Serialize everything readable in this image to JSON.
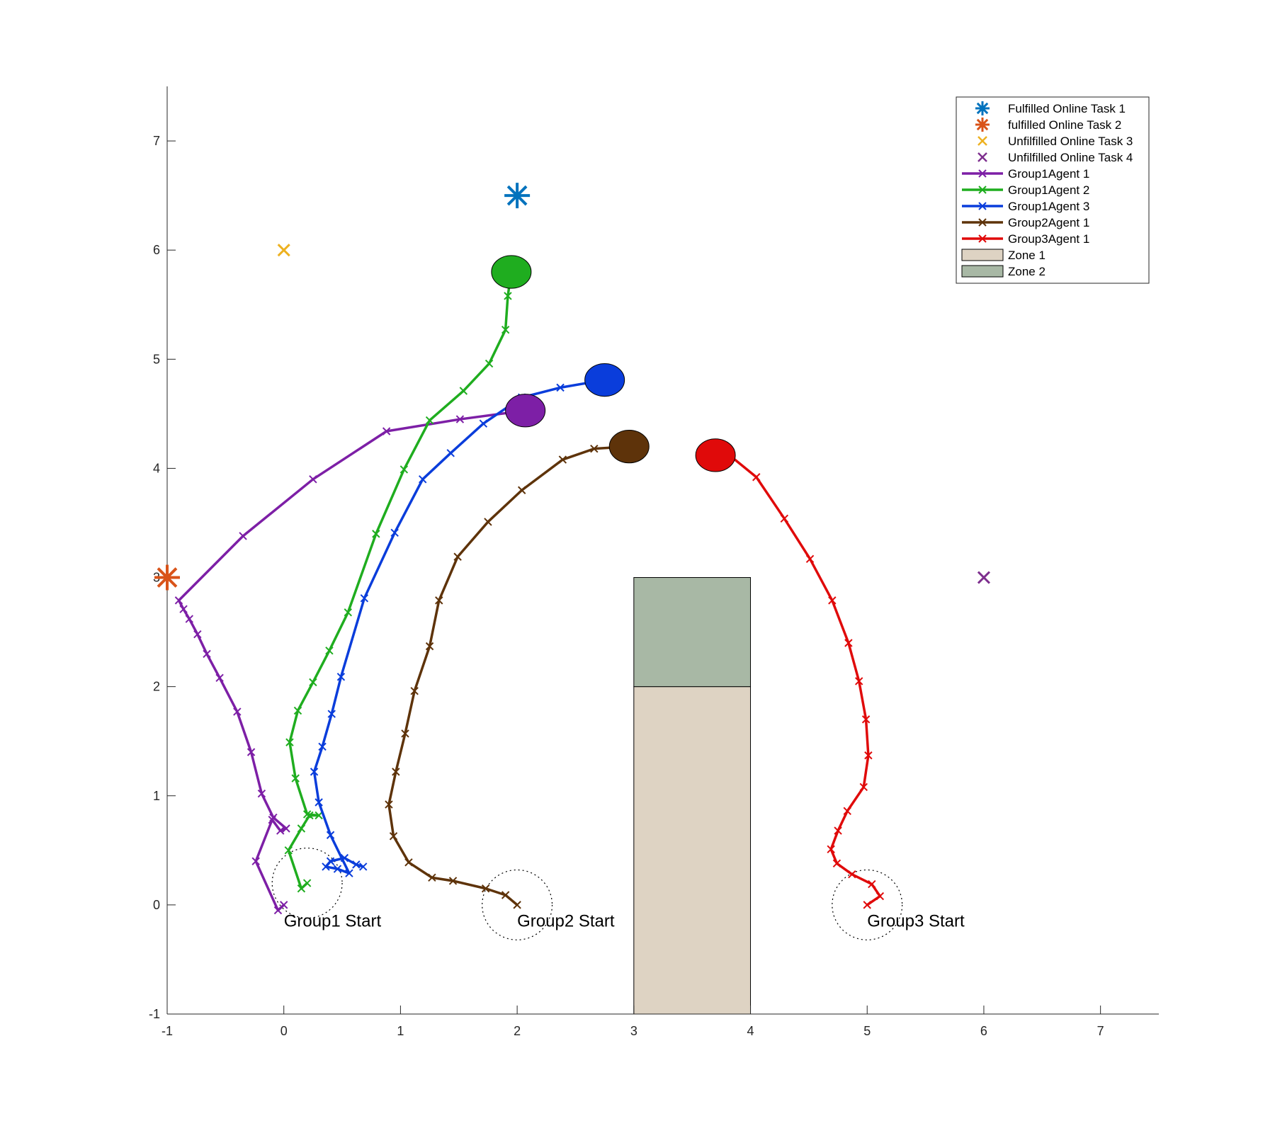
{
  "chart_data": {
    "type": "line",
    "title": "",
    "xlabel": "",
    "ylabel": "",
    "xlim": [
      -1,
      7.5
    ],
    "ylim": [
      -1,
      7.5
    ],
    "xticks": [
      -1,
      0,
      1,
      2,
      3,
      4,
      5,
      6,
      7
    ],
    "yticks": [
      -1,
      0,
      1,
      2,
      3,
      4,
      5,
      6,
      7
    ],
    "legend_placement": "top-right",
    "zones": [
      {
        "name": "Zone 1",
        "color": "#DED3C3",
        "x": [
          3,
          4
        ],
        "y": [
          -1,
          2
        ]
      },
      {
        "name": "Zone 2",
        "color": "#A8B8A5",
        "x": [
          3,
          4
        ],
        "y": [
          2,
          3
        ]
      }
    ],
    "tasks": [
      {
        "name": "Fulfilled Online Task 1",
        "marker": "asterisk",
        "color": "#0072BD",
        "x": 2,
        "y": 6.5
      },
      {
        "name": "fulfilled Online Task 2",
        "marker": "asterisk",
        "color": "#D95319",
        "x": -1,
        "y": 3
      },
      {
        "name": "Unfilfilled Online Task 3",
        "marker": "x",
        "color": "#EDB120",
        "x": 0,
        "y": 6
      },
      {
        "name": "Unfilfilled Online Task 4",
        "marker": "x",
        "color": "#7E2F8E",
        "x": 6,
        "y": 3
      }
    ],
    "series": [
      {
        "name": "Group1Agent 1",
        "color": "#7D1FA6",
        "x": [
          0.0,
          -0.05,
          -0.24,
          -0.1,
          -0.03,
          0.02,
          -0.09,
          -0.19,
          -0.28,
          -0.4,
          -0.55,
          -0.66,
          -0.74,
          -0.81,
          -0.86,
          -0.9,
          -0.35,
          0.25,
          0.88,
          1.51,
          2.07
        ],
        "y": [
          0.0,
          -0.05,
          0.4,
          0.78,
          0.68,
          0.7,
          0.8,
          1.02,
          1.4,
          1.77,
          2.08,
          2.3,
          2.48,
          2.62,
          2.71,
          2.79,
          3.38,
          3.9,
          4.34,
          4.45,
          4.53
        ]
      },
      {
        "name": "Group1Agent 2",
        "color": "#1FAD1F",
        "x": [
          0.2,
          0.15,
          0.04,
          0.15,
          0.22,
          0.3,
          0.2,
          0.1,
          0.05,
          0.12,
          0.25,
          0.39,
          0.55,
          0.79,
          1.03,
          1.25,
          1.54,
          1.76,
          1.9,
          1.92,
          1.95
        ],
        "y": [
          0.2,
          0.15,
          0.5,
          0.7,
          0.82,
          0.82,
          0.83,
          1.16,
          1.49,
          1.78,
          2.04,
          2.33,
          2.68,
          3.4,
          3.99,
          4.44,
          4.71,
          4.96,
          5.27,
          5.58,
          5.8
        ]
      },
      {
        "name": "Group1Agent 3",
        "color": "#0A3DDB",
        "x": [
          0.68,
          0.62,
          0.52,
          0.4,
          0.36,
          0.46,
          0.56,
          0.4,
          0.3,
          0.26,
          0.33,
          0.41,
          0.49,
          0.69,
          0.95,
          1.19,
          1.43,
          1.71,
          2.04,
          2.37,
          2.75
        ],
        "y": [
          0.35,
          0.37,
          0.43,
          0.4,
          0.35,
          0.33,
          0.29,
          0.64,
          0.94,
          1.22,
          1.45,
          1.75,
          2.09,
          2.81,
          3.41,
          3.9,
          4.14,
          4.41,
          4.65,
          4.74,
          4.81
        ]
      },
      {
        "name": "Group2Agent 1",
        "color": "#5E330A",
        "x": [
          2.0,
          1.9,
          1.73,
          1.45,
          1.27,
          1.07,
          0.94,
          0.9,
          0.96,
          1.04,
          1.12,
          1.25,
          1.33,
          1.49,
          1.75,
          2.04,
          2.39,
          2.66,
          2.96
        ],
        "y": [
          0.0,
          0.09,
          0.15,
          0.22,
          0.25,
          0.39,
          0.63,
          0.92,
          1.22,
          1.57,
          1.96,
          2.37,
          2.79,
          3.19,
          3.51,
          3.8,
          4.08,
          4.18,
          4.2
        ]
      },
      {
        "name": "Group3Agent 1",
        "color": "#E00A0A",
        "x": [
          5.0,
          5.11,
          5.04,
          4.87,
          4.74,
          4.69,
          4.75,
          4.83,
          4.97,
          5.01,
          4.99,
          4.93,
          4.84,
          4.7,
          4.51,
          4.29,
          4.05,
          3.82,
          3.7
        ],
        "y": [
          0.0,
          0.08,
          0.19,
          0.28,
          0.38,
          0.51,
          0.68,
          0.86,
          1.08,
          1.37,
          1.7,
          2.05,
          2.4,
          2.79,
          3.17,
          3.54,
          3.92,
          4.12,
          4.12
        ]
      }
    ],
    "agent_end_markers": [
      {
        "color": "#1FAD1F",
        "x": 1.95,
        "y": 5.8
      },
      {
        "color": "#0A3DDB",
        "x": 2.75,
        "y": 4.81
      },
      {
        "color": "#7D1FA6",
        "x": 2.07,
        "y": 4.53
      },
      {
        "color": "#5E330A",
        "x": 2.96,
        "y": 4.2
      },
      {
        "color": "#E00A0A",
        "x": 3.7,
        "y": 4.12
      }
    ],
    "start_regions": [
      {
        "label": "Group1 Start",
        "x": 0.2,
        "y": 0.2
      },
      {
        "label": "Group2 Start",
        "x": 2.0,
        "y": 0.0
      },
      {
        "label": "Group3 Start",
        "x": 5.0,
        "y": 0.0
      }
    ]
  }
}
